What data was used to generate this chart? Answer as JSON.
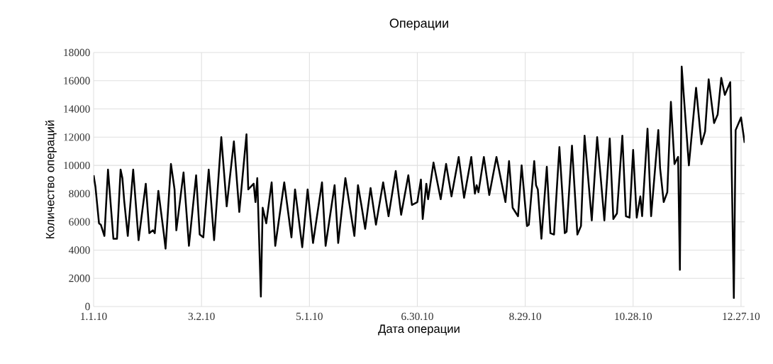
{
  "chart_data": {
    "type": "line",
    "title": "Операции",
    "xlabel": "Дата операции",
    "ylabel": "Количество операций",
    "color": "#000000",
    "grid": true,
    "xlim": [
      "2010-01-01",
      "2010-12-29"
    ],
    "xticks": [
      {
        "value": "2010-01-01",
        "label": "1.1.10"
      },
      {
        "value": "2010-03-02",
        "label": "3.2.10"
      },
      {
        "value": "2010-05-01",
        "label": "5.1.10"
      },
      {
        "value": "2010-06-30",
        "label": "6.30.10"
      },
      {
        "value": "2010-08-29",
        "label": "8.29.10"
      },
      {
        "value": "2010-10-28",
        "label": "10.28.10"
      },
      {
        "value": "2010-12-27",
        "label": "12.27.10"
      }
    ],
    "ylim": [
      0,
      18000
    ],
    "yticks": [
      0,
      2000,
      4000,
      6000,
      8000,
      10000,
      12000,
      14000,
      16000,
      18000
    ],
    "x": [
      "2010-01-01",
      "2010-01-02",
      "2010-01-04",
      "2010-01-05",
      "2010-01-07",
      "2010-01-09",
      "2010-01-12",
      "2010-01-14",
      "2010-01-16",
      "2010-01-17",
      "2010-01-18",
      "2010-01-20",
      "2010-01-23",
      "2010-01-26",
      "2010-01-30",
      "2010-02-01",
      "2010-02-03",
      "2010-02-04",
      "2010-02-06",
      "2010-02-09",
      "2010-02-10",
      "2010-02-13",
      "2010-02-15",
      "2010-02-16",
      "2010-02-20",
      "2010-02-23",
      "2010-02-27",
      "2010-03-01",
      "2010-03-03",
      "2010-03-06",
      "2010-03-09",
      "2010-03-13",
      "2010-03-16",
      "2010-03-20",
      "2010-03-23",
      "2010-03-27",
      "2010-03-28",
      "2010-03-31",
      "2010-04-01",
      "2010-04-02",
      "2010-04-04",
      "2010-04-05",
      "2010-04-07",
      "2010-04-10",
      "2010-04-12",
      "2010-04-17",
      "2010-04-21",
      "2010-04-23",
      "2010-04-27",
      "2010-04-30",
      "2010-05-03",
      "2010-05-08",
      "2010-05-10",
      "2010-05-15",
      "2010-05-17",
      "2010-05-21",
      "2010-05-26",
      "2010-05-28",
      "2010-05-30",
      "2010-06-01",
      "2010-06-04",
      "2010-06-07",
      "2010-06-11",
      "2010-06-14",
      "2010-06-18",
      "2010-06-21",
      "2010-06-25",
      "2010-06-27",
      "2010-06-30",
      "2010-07-02",
      "2010-07-03",
      "2010-07-05",
      "2010-07-06",
      "2010-07-09",
      "2010-07-13",
      "2010-07-16",
      "2010-07-19",
      "2010-07-23",
      "2010-07-26",
      "2010-07-30",
      "2010-08-01",
      "2010-08-02",
      "2010-08-03",
      "2010-08-06",
      "2010-08-09",
      "2010-08-13",
      "2010-08-18",
      "2010-08-20",
      "2010-08-22",
      "2010-08-25",
      "2010-08-27",
      "2010-08-30",
      "2010-08-31",
      "2010-09-03",
      "2010-09-04",
      "2010-09-05",
      "2010-09-07",
      "2010-09-10",
      "2010-09-12",
      "2010-09-14",
      "2010-09-17",
      "2010-09-20",
      "2010-09-21",
      "2010-09-24",
      "2010-09-27",
      "2010-09-29",
      "2010-10-01",
      "2010-10-05",
      "2010-10-08",
      "2010-10-10",
      "2010-10-12",
      "2010-10-15",
      "2010-10-17",
      "2010-10-19",
      "2010-10-22",
      "2010-10-24",
      "2010-10-26",
      "2010-10-28",
      "2010-10-30",
      "2010-11-01",
      "2010-11-02",
      "2010-11-05",
      "2010-11-07",
      "2010-11-11",
      "2010-11-12",
      "2010-11-14",
      "2010-11-16",
      "2010-11-18",
      "2010-11-20",
      "2010-11-22",
      "2010-11-23",
      "2010-11-24",
      "2010-11-28",
      "2010-12-02",
      "2010-12-05",
      "2010-12-07",
      "2010-12-09",
      "2010-12-12",
      "2010-12-14",
      "2010-12-16",
      "2010-12-18",
      "2010-12-19",
      "2010-12-21",
      "2010-12-23",
      "2010-12-24",
      "2010-12-27",
      "2010-12-29"
    ],
    "values": [
      9300,
      8500,
      5900,
      5800,
      5000,
      9700,
      4800,
      4800,
      9700,
      9100,
      7500,
      5000,
      9700,
      4700,
      8700,
      5200,
      5400,
      5200,
      8200,
      5200,
      4100,
      10100,
      8300,
      5400,
      9500,
      4300,
      9300,
      5100,
      4900,
      9700,
      4700,
      12000,
      7100,
      11700,
      6700,
      12200,
      8300,
      8700,
      7400,
      9100,
      700,
      7000,
      5900,
      8800,
      4300,
      8800,
      4900,
      8300,
      4200,
      8300,
      4500,
      8800,
      4300,
      8600,
      4500,
      9100,
      5000,
      8600,
      7100,
      5500,
      8400,
      5800,
      8800,
      6400,
      9600,
      6500,
      9300,
      7200,
      7400,
      9000,
      6200,
      8700,
      7600,
      10200,
      7600,
      10100,
      7800,
      10600,
      7700,
      10600,
      8000,
      8600,
      8100,
      10600,
      7900,
      10600,
      7400,
      10300,
      7000,
      6400,
      10000,
      5700,
      5800,
      10300,
      8600,
      8300,
      4800,
      9900,
      5200,
      5100,
      11300,
      5200,
      5300,
      11400,
      5100,
      5700,
      12100,
      6100,
      12000,
      9100,
      6100,
      11900,
      6200,
      6600,
      12100,
      6400,
      6300,
      11100,
      6300,
      7800,
      6400,
      12600,
      6400,
      12500,
      9800,
      7400,
      8100,
      14500,
      10100,
      10600,
      2600,
      17000,
      10000,
      15500,
      11500,
      12400,
      16100,
      13000,
      13600,
      16200,
      15000,
      15300,
      15900,
      600,
      12500,
      13400,
      11600
    ]
  }
}
